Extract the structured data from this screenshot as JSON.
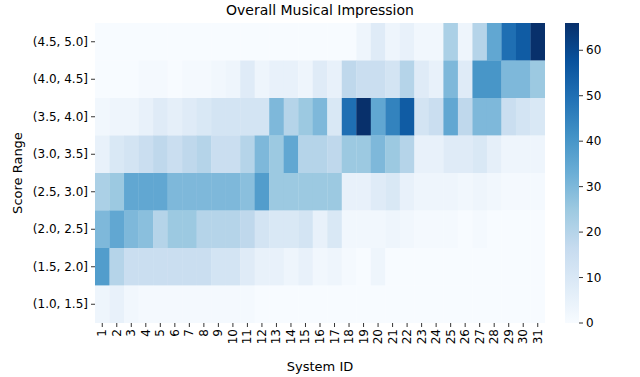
{
  "chart_data": {
    "type": "heatmap",
    "title": "Overall Musical Impression",
    "x_label": "System ID",
    "y_label": "Score Range",
    "x_categories": [
      "1",
      "2",
      "3",
      "4",
      "5",
      "6",
      "7",
      "8",
      "9",
      "10",
      "11",
      "12",
      "13",
      "14",
      "15",
      "16",
      "17",
      "18",
      "19",
      "20",
      "21",
      "22",
      "23",
      "24",
      "25",
      "26",
      "27",
      "28",
      "29",
      "30",
      "31"
    ],
    "y_categories": [
      "(4.5, 5.0]",
      "(4.0, 4.5]",
      "(3.5, 4.0]",
      "(3.0, 3.5]",
      "(2.5, 3.0]",
      "(2.0, 2.5]",
      "(1.5, 2.0]",
      "(1.0, 1.5]"
    ],
    "values": [
      [
        0,
        0,
        0,
        0,
        0,
        0,
        0,
        0,
        0,
        0,
        0,
        0,
        0,
        0,
        0,
        0,
        0,
        0,
        3,
        8,
        3,
        5,
        2,
        2,
        22,
        3,
        20,
        35,
        50,
        55,
        66
      ],
      [
        0,
        0,
        0,
        1,
        1,
        0,
        1,
        1,
        2,
        3,
        8,
        3,
        5,
        5,
        3,
        8,
        5,
        18,
        15,
        15,
        12,
        20,
        8,
        5,
        30,
        8,
        40,
        40,
        30,
        30,
        25
      ],
      [
        2,
        3,
        3,
        5,
        8,
        6,
        8,
        10,
        12,
        12,
        12,
        12,
        30,
        20,
        25,
        30,
        10,
        50,
        66,
        35,
        45,
        55,
        12,
        15,
        35,
        18,
        30,
        30,
        15,
        12,
        10
      ],
      [
        5,
        10,
        12,
        15,
        18,
        15,
        18,
        20,
        15,
        15,
        20,
        30,
        25,
        35,
        20,
        20,
        18,
        25,
        25,
        30,
        25,
        20,
        5,
        5,
        8,
        8,
        10,
        6,
        3,
        3,
        3
      ],
      [
        22,
        25,
        35,
        35,
        35,
        30,
        30,
        30,
        30,
        30,
        28,
        38,
        25,
        25,
        25,
        25,
        25,
        5,
        5,
        8,
        10,
        5,
        3,
        3,
        3,
        2,
        3,
        2,
        1,
        1,
        1
      ],
      [
        30,
        35,
        30,
        28,
        20,
        25,
        25,
        20,
        20,
        20,
        18,
        12,
        10,
        10,
        12,
        5,
        10,
        2,
        2,
        2,
        3,
        2,
        1,
        1,
        1,
        0,
        1,
        0,
        0,
        0,
        0
      ],
      [
        38,
        20,
        15,
        15,
        15,
        15,
        15,
        15,
        12,
        12,
        8,
        5,
        5,
        3,
        5,
        2,
        3,
        1,
        0,
        3,
        0,
        0,
        0,
        0,
        0,
        0,
        0,
        0,
        0,
        0,
        0
      ],
      [
        3,
        5,
        2,
        1,
        1,
        1,
        1,
        1,
        1,
        1,
        1,
        0,
        0,
        0,
        0,
        0,
        0,
        0,
        0,
        0,
        0,
        0,
        0,
        0,
        0,
        0,
        0,
        0,
        0,
        0,
        0
      ]
    ],
    "colorbar_range": [
      0,
      66
    ],
    "colorbar_ticks": [
      0,
      10,
      20,
      30,
      40,
      50,
      60
    ]
  }
}
